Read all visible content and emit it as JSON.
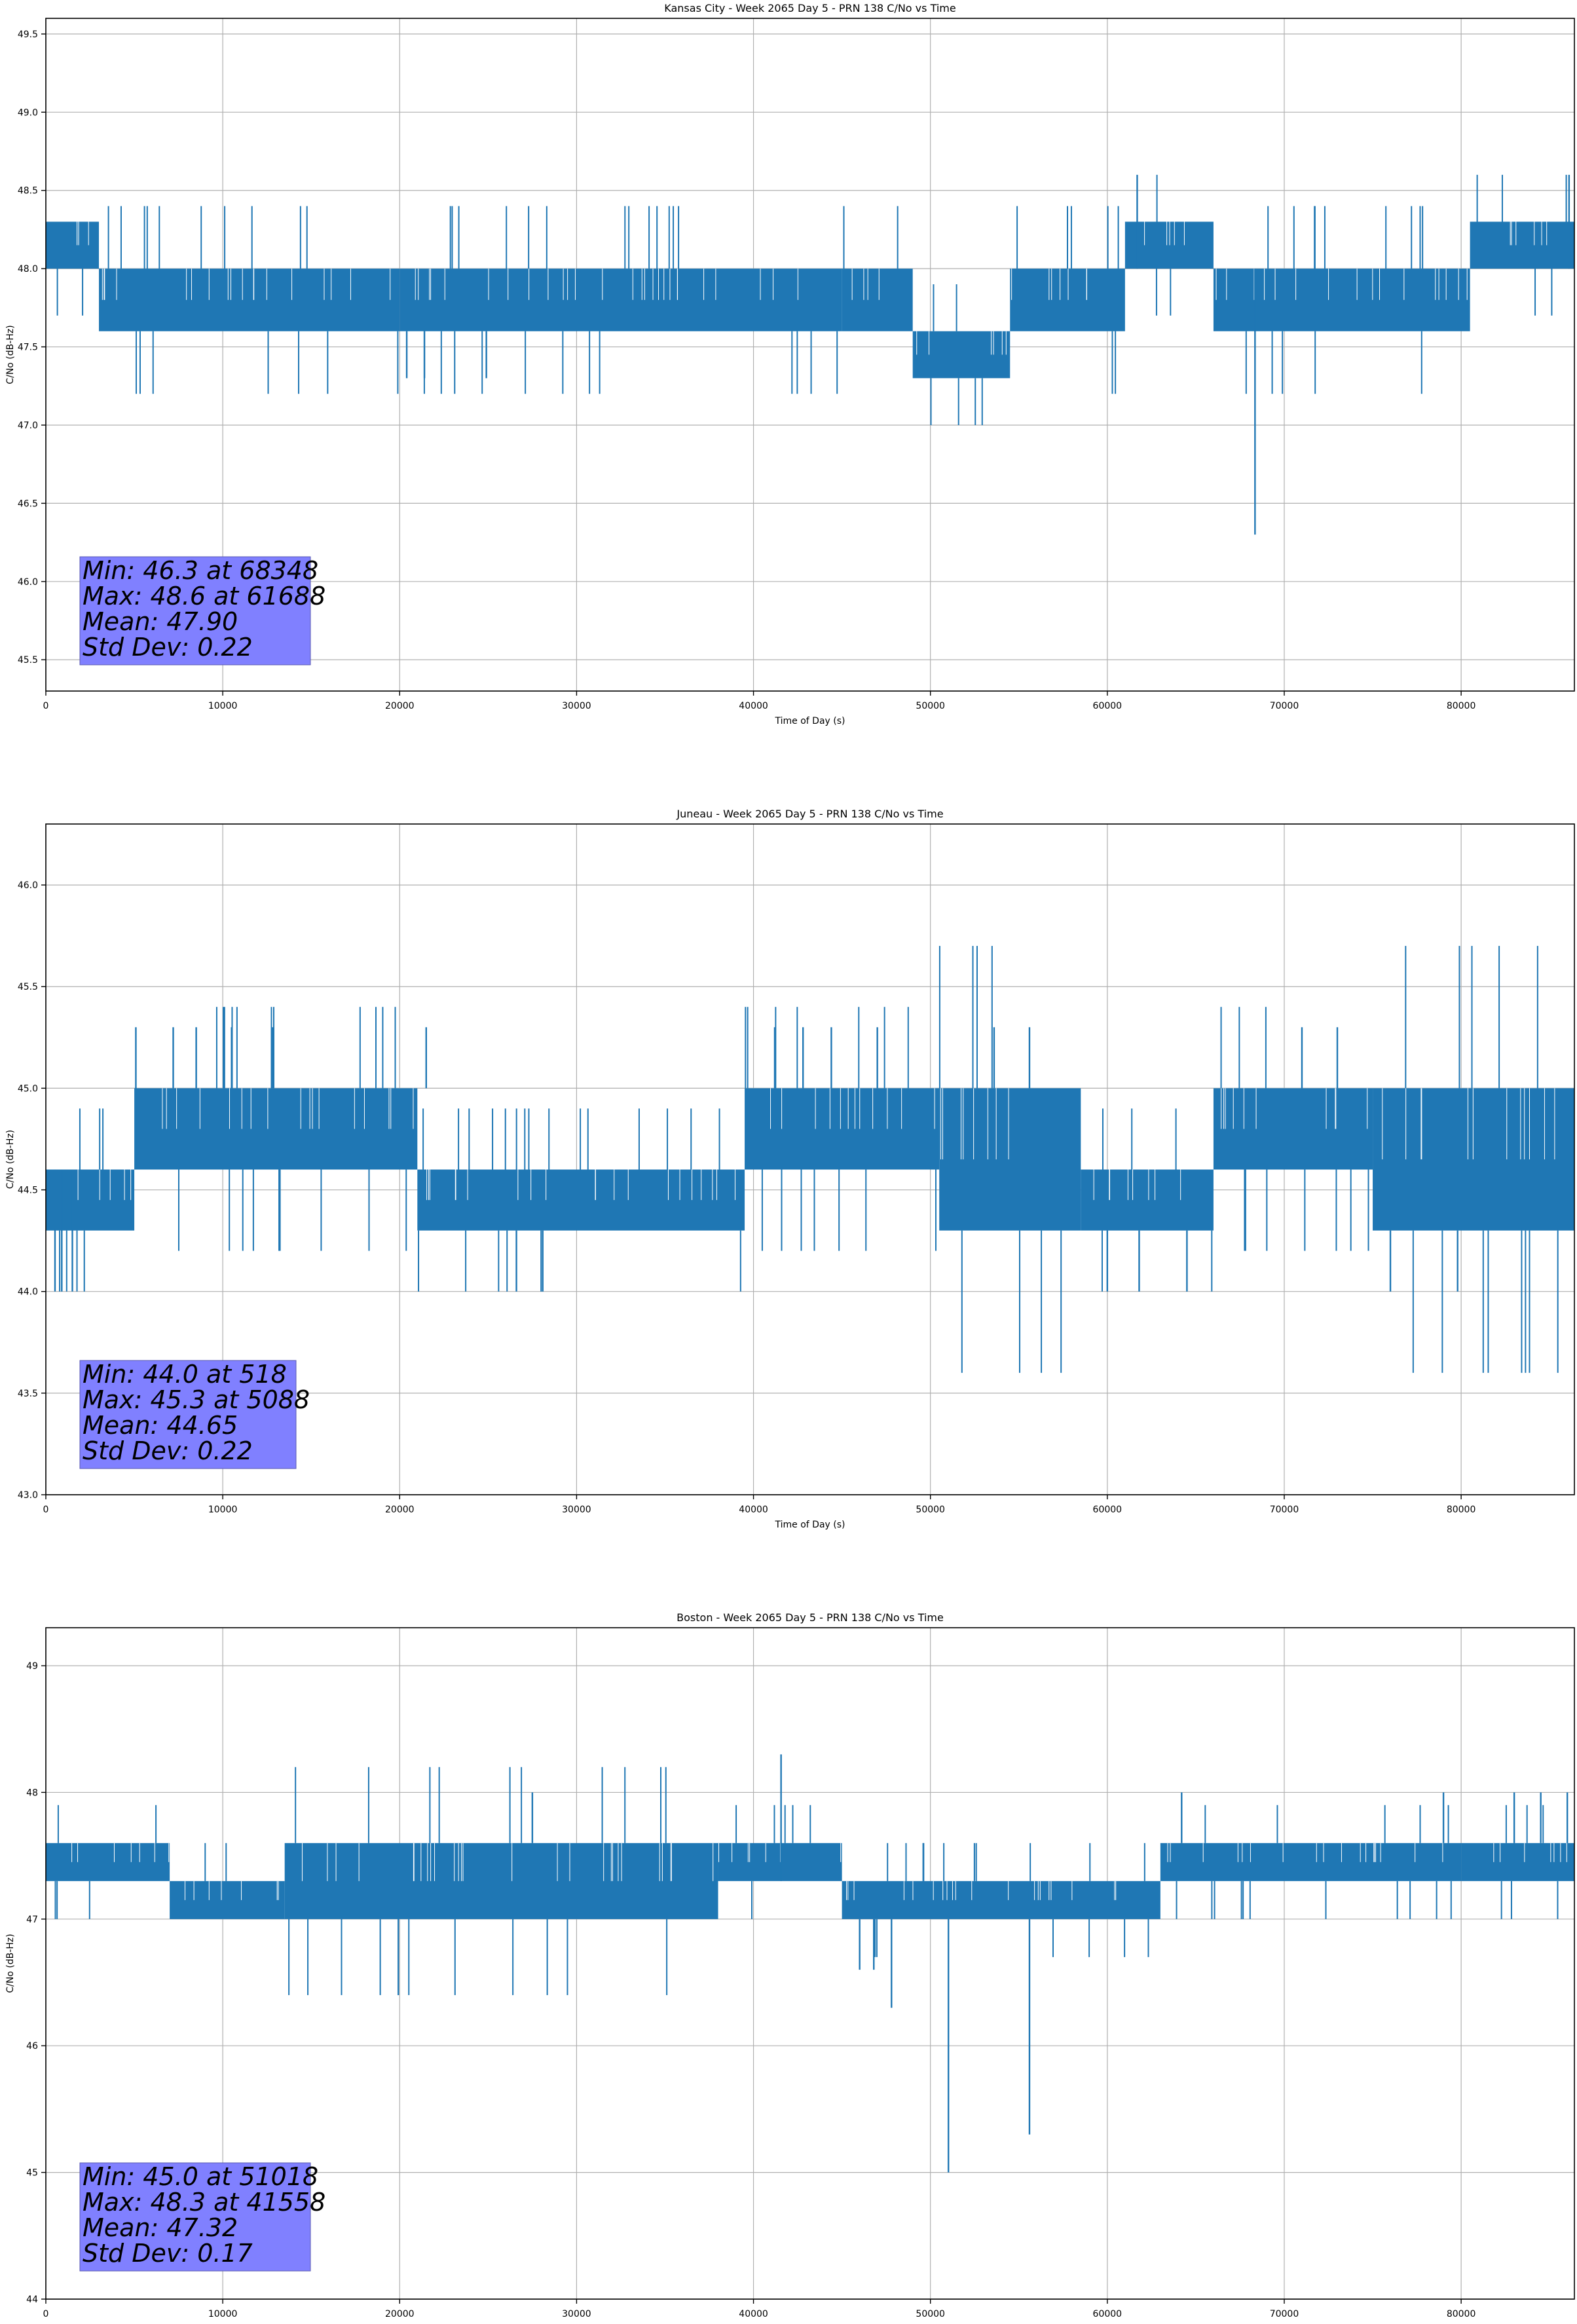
{
  "colors": {
    "series": "#1f77b4",
    "grid": "#b0b0b0",
    "stats_box": "#8080ff",
    "axes": "#000000"
  },
  "chart_data": [
    {
      "type": "line",
      "title": "Kansas City - Week 2065 Day 5 - PRN 138 C/No vs Time",
      "xlabel": "Time of Day (s)",
      "ylabel": "C/No (dB-Hz)",
      "xlim": [
        0,
        86400
      ],
      "ylim": [
        45.3,
        49.6
      ],
      "xticks": [
        0,
        10000,
        20000,
        30000,
        40000,
        50000,
        60000,
        70000,
        80000
      ],
      "yticks": [
        "45.5",
        "46.0",
        "46.5",
        "47.0",
        "47.5",
        "48.0",
        "48.5",
        "49.0",
        "49.5"
      ],
      "grid": true,
      "series": [
        {
          "segments": [
            {
              "x_start": 0,
              "x_end": 3000,
              "low": 48.0,
              "high": 48.3
            },
            {
              "x_start": 3000,
              "x_end": 20000,
              "low": 47.6,
              "high": 48.0
            },
            {
              "x_start": 20000,
              "x_end": 45000,
              "low": 47.6,
              "high": 48.0
            },
            {
              "x_start": 45000,
              "x_end": 49000,
              "low": 47.6,
              "high": 48.0
            },
            {
              "x_start": 49000,
              "x_end": 54500,
              "low": 47.3,
              "high": 47.6
            },
            {
              "x_start": 54500,
              "x_end": 61000,
              "low": 47.6,
              "high": 48.0
            },
            {
              "x_start": 61000,
              "x_end": 66000,
              "low": 48.0,
              "high": 48.3
            },
            {
              "x_start": 66000,
              "x_end": 80500,
              "low": 47.6,
              "high": 48.0
            },
            {
              "x_start": 80500,
              "x_end": 86400,
              "low": 48.0,
              "high": 48.3
            }
          ],
          "spikes": [
            {
              "x": 61688,
              "low": 48.0,
              "high": 48.6
            },
            {
              "x": 68348,
              "low": 46.3,
              "high": 48.0
            },
            {
              "x": 86100,
              "low": 48.0,
              "high": 48.6
            },
            {
              "x": 20400,
              "low": 47.3,
              "high": 47.6
            },
            {
              "x": 21400,
              "low": 47.3,
              "high": 47.6
            },
            {
              "x": 24900,
              "low": 47.3,
              "high": 47.6
            }
          ]
        }
      ],
      "stats": [
        "Min: 46.3 at 68348",
        "Max: 48.6 at 61688",
        "Mean: 47.90",
        "Std Dev: 0.22"
      ]
    },
    {
      "type": "line",
      "title": "Juneau - Week 2065 Day 5 - PRN 138 C/No vs Time",
      "xlabel": "Time of Day (s)",
      "ylabel": "C/No (dB-Hz)",
      "xlim": [
        0,
        86400
      ],
      "ylim": [
        43.0,
        46.3
      ],
      "xticks": [
        0,
        10000,
        20000,
        30000,
        40000,
        50000,
        60000,
        70000,
        80000
      ],
      "yticks": [
        "43.0",
        "43.5",
        "44.0",
        "44.5",
        "45.0",
        "45.5",
        "46.0"
      ],
      "grid": true,
      "series": [
        {
          "segments": [
            {
              "x_start": 0,
              "x_end": 5000,
              "low": 44.3,
              "high": 44.6
            },
            {
              "x_start": 5000,
              "x_end": 21000,
              "low": 44.6,
              "high": 45.0
            },
            {
              "x_start": 21000,
              "x_end": 39500,
              "low": 44.3,
              "high": 44.6
            },
            {
              "x_start": 39500,
              "x_end": 50500,
              "low": 44.6,
              "high": 45.0
            },
            {
              "x_start": 50500,
              "x_end": 58500,
              "low": 44.3,
              "high": 45.0
            },
            {
              "x_start": 58500,
              "x_end": 66000,
              "low": 44.3,
              "high": 44.6
            },
            {
              "x_start": 66000,
              "x_end": 75000,
              "low": 44.6,
              "high": 45.0
            },
            {
              "x_start": 75000,
              "x_end": 86400,
              "low": 44.3,
              "high": 45.0
            }
          ],
          "spikes": [
            {
              "x": 518,
              "low": 44.0,
              "high": 44.6
            },
            {
              "x": 900,
              "low": 44.0,
              "high": 44.6
            },
            {
              "x": 1500,
              "low": 44.0,
              "high": 44.6
            },
            {
              "x": 5088,
              "low": 44.6,
              "high": 45.3
            },
            {
              "x": 7200,
              "low": 45.0,
              "high": 45.3
            },
            {
              "x": 8500,
              "low": 45.0,
              "high": 45.3
            },
            {
              "x": 10500,
              "low": 45.0,
              "high": 45.3
            },
            {
              "x": 12800,
              "low": 45.0,
              "high": 45.3
            },
            {
              "x": 21500,
              "low": 45.0,
              "high": 45.3
            },
            {
              "x": 26600,
              "low": 44.0,
              "high": 44.3
            },
            {
              "x": 28000,
              "low": 44.0,
              "high": 44.3
            },
            {
              "x": 41200,
              "low": 45.0,
              "high": 45.3
            },
            {
              "x": 42800,
              "low": 45.0,
              "high": 45.3
            },
            {
              "x": 44400,
              "low": 45.0,
              "high": 45.3
            },
            {
              "x": 47000,
              "low": 45.0,
              "high": 45.3
            },
            {
              "x": 53600,
              "low": 45.0,
              "high": 45.3
            },
            {
              "x": 55600,
              "low": 45.0,
              "high": 45.3
            },
            {
              "x": 60000,
              "low": 44.0,
              "high": 44.3
            },
            {
              "x": 61800,
              "low": 44.0,
              "high": 44.3
            },
            {
              "x": 64500,
              "low": 44.0,
              "high": 44.3
            },
            {
              "x": 71000,
              "low": 45.0,
              "high": 45.3
            },
            {
              "x": 73000,
              "low": 45.0,
              "high": 45.3
            },
            {
              "x": 76000,
              "low": 44.0,
              "high": 44.3
            },
            {
              "x": 79800,
              "low": 44.0,
              "high": 44.3
            }
          ]
        }
      ],
      "stats": [
        "Min: 44.0 at 518",
        "Max: 45.3 at 5088",
        "Mean: 44.65",
        "Std Dev: 0.22"
      ]
    },
    {
      "type": "line",
      "title": "Boston - Week 2065 Day 5 - PRN 138 C/No vs Time",
      "xlabel": "Time of Day (s)",
      "ylabel": "C/No (dB-Hz)",
      "xlim": [
        0,
        86400
      ],
      "ylim": [
        44.0,
        49.3
      ],
      "xticks": [
        0,
        10000,
        20000,
        30000,
        40000,
        50000,
        60000,
        70000,
        80000
      ],
      "yticks": [
        "44",
        "45",
        "46",
        "47",
        "48",
        "49"
      ],
      "grid": true,
      "series": [
        {
          "segments": [
            {
              "x_start": 0,
              "x_end": 7000,
              "low": 47.3,
              "high": 47.6
            },
            {
              "x_start": 7000,
              "x_end": 13500,
              "low": 47.0,
              "high": 47.3
            },
            {
              "x_start": 13500,
              "x_end": 38000,
              "low": 47.0,
              "high": 47.6
            },
            {
              "x_start": 38000,
              "x_end": 45000,
              "low": 47.3,
              "high": 47.6
            },
            {
              "x_start": 45000,
              "x_end": 63000,
              "low": 47.0,
              "high": 47.3
            },
            {
              "x_start": 63000,
              "x_end": 80000,
              "low": 47.3,
              "high": 47.6
            },
            {
              "x_start": 80000,
              "x_end": 86400,
              "low": 47.3,
              "high": 47.6
            }
          ],
          "spikes": [
            {
              "x": 27500,
              "low": 47.6,
              "high": 48.0
            },
            {
              "x": 41558,
              "low": 47.3,
              "high": 48.3
            },
            {
              "x": 46000,
              "low": 46.6,
              "high": 47.0
            },
            {
              "x": 46800,
              "low": 46.6,
              "high": 47.0
            },
            {
              "x": 47800,
              "low": 46.3,
              "high": 47.0
            },
            {
              "x": 51018,
              "low": 45.0,
              "high": 47.0
            },
            {
              "x": 55600,
              "low": 45.3,
              "high": 47.0
            },
            {
              "x": 64200,
              "low": 47.6,
              "high": 48.0
            },
            {
              "x": 79000,
              "low": 47.6,
              "high": 48.0
            },
            {
              "x": 83000,
              "low": 47.6,
              "high": 48.0
            },
            {
              "x": 84500,
              "low": 47.6,
              "high": 48.0
            },
            {
              "x": 86000,
              "low": 47.6,
              "high": 48.0
            }
          ]
        }
      ],
      "stats": [
        "Min: 45.0 at 51018",
        "Max: 48.3 at 41558",
        "Mean: 47.32",
        "Std Dev: 0.17"
      ]
    }
  ]
}
